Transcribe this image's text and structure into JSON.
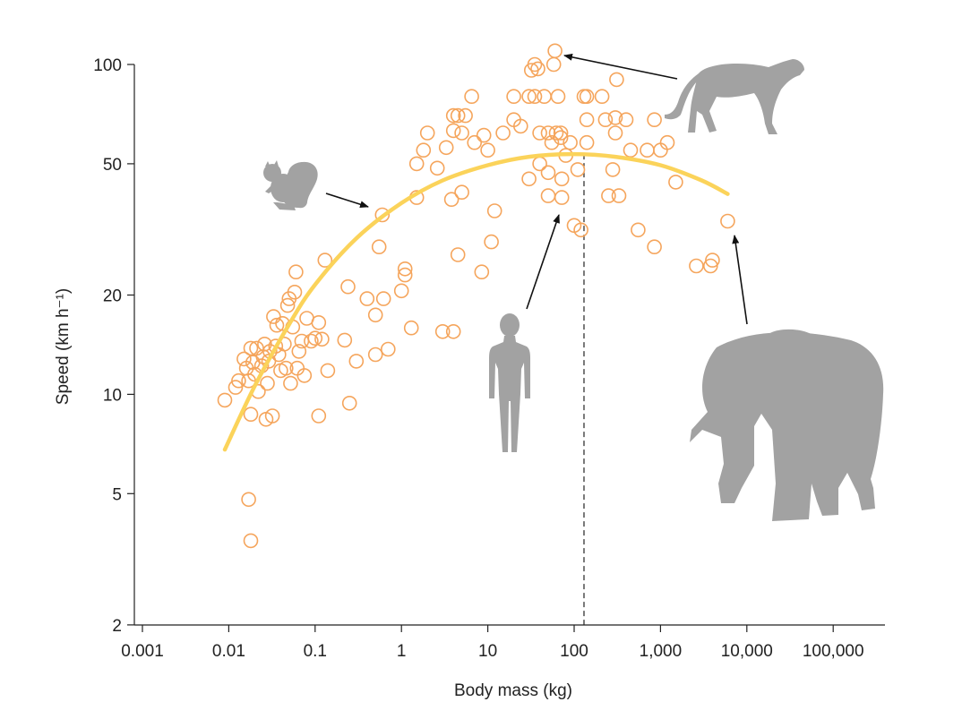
{
  "chart_data": {
    "type": "scatter",
    "xlabel": "Body mass (kg)",
    "ylabel": "Speed (km h⁻¹)",
    "x_scale": "log",
    "y_scale": "log",
    "xlim": [
      0.0009,
      400000
    ],
    "ylim": [
      2,
      115
    ],
    "x_ticks": [
      0.001,
      0.01,
      0.1,
      1,
      10,
      100,
      1000,
      10000,
      100000
    ],
    "x_tick_labels": [
      "0.001",
      "0.01",
      "0.1",
      "1",
      "10",
      "100",
      "1,000",
      "10,000",
      "100,000"
    ],
    "y_ticks": [
      2,
      5,
      10,
      20,
      50,
      100
    ],
    "y_tick_labels": [
      "2",
      "5",
      "10",
      "20",
      "50",
      "100"
    ],
    "points": [
      [
        0.009,
        9.6
      ],
      [
        0.012,
        10.5
      ],
      [
        0.013,
        11
      ],
      [
        0.015,
        12.8
      ],
      [
        0.016,
        12
      ],
      [
        0.017,
        11
      ],
      [
        0.018,
        8.7
      ],
      [
        0.018,
        13.8
      ],
      [
        0.019,
        12.5
      ],
      [
        0.02,
        11.5
      ],
      [
        0.021,
        13.8
      ],
      [
        0.022,
        10.2
      ],
      [
        0.024,
        12.2
      ],
      [
        0.025,
        13
      ],
      [
        0.026,
        14.2
      ],
      [
        0.027,
        8.4
      ],
      [
        0.028,
        10.8
      ],
      [
        0.029,
        12.6
      ],
      [
        0.03,
        13.5
      ],
      [
        0.032,
        8.6
      ],
      [
        0.033,
        17.2
      ],
      [
        0.035,
        14
      ],
      [
        0.036,
        16.2
      ],
      [
        0.038,
        13.2
      ],
      [
        0.04,
        11.8
      ],
      [
        0.042,
        16.4
      ],
      [
        0.044,
        14.2
      ],
      [
        0.046,
        12
      ],
      [
        0.048,
        18.6
      ],
      [
        0.05,
        19.5
      ],
      [
        0.052,
        10.8
      ],
      [
        0.055,
        16
      ],
      [
        0.058,
        20.4
      ],
      [
        0.06,
        23.5
      ],
      [
        0.062,
        12
      ],
      [
        0.065,
        13.5
      ],
      [
        0.07,
        14.5
      ],
      [
        0.075,
        11.4
      ],
      [
        0.08,
        17
      ],
      [
        0.09,
        14.5
      ],
      [
        0.1,
        14.8
      ],
      [
        0.11,
        16.5
      ],
      [
        0.11,
        8.6
      ],
      [
        0.12,
        14.7
      ],
      [
        0.13,
        25.5
      ],
      [
        0.14,
        11.8
      ],
      [
        0.22,
        14.6
      ],
      [
        0.24,
        21.2
      ],
      [
        0.25,
        9.4
      ],
      [
        0.3,
        12.6
      ],
      [
        0.4,
        19.5
      ],
      [
        0.5,
        13.2
      ],
      [
        0.5,
        17.4
      ],
      [
        0.55,
        28
      ],
      [
        0.6,
        35
      ],
      [
        0.62,
        19.5
      ],
      [
        0.7,
        13.7
      ],
      [
        1.0,
        20.6
      ],
      [
        1.1,
        23
      ],
      [
        1.1,
        24
      ],
      [
        1.3,
        15.9
      ],
      [
        1.5,
        39.5
      ],
      [
        1.5,
        50
      ],
      [
        1.8,
        55
      ],
      [
        2.0,
        62
      ],
      [
        2.6,
        48.5
      ],
      [
        3.0,
        15.5
      ],
      [
        3.3,
        56
      ],
      [
        3.8,
        39
      ],
      [
        4.0,
        15.5
      ],
      [
        4.0,
        70
      ],
      [
        4.0,
        63
      ],
      [
        4.5,
        26.5
      ],
      [
        4.5,
        70
      ],
      [
        5.0,
        41
      ],
      [
        5.0,
        62
      ],
      [
        5.5,
        70
      ],
      [
        6.5,
        80
      ],
      [
        7.0,
        58
      ],
      [
        8.5,
        23.5
      ],
      [
        9.0,
        61
      ],
      [
        10,
        55
      ],
      [
        11,
        29
      ],
      [
        12,
        36
      ],
      [
        15,
        62
      ],
      [
        20,
        68
      ],
      [
        20,
        80
      ],
      [
        24,
        65
      ],
      [
        30,
        45
      ],
      [
        30,
        80
      ],
      [
        32,
        96
      ],
      [
        35,
        80
      ],
      [
        35,
        100
      ],
      [
        38,
        97
      ],
      [
        40,
        50
      ],
      [
        40,
        62
      ],
      [
        45,
        80
      ],
      [
        50,
        62
      ],
      [
        50,
        40
      ],
      [
        50,
        47
      ],
      [
        55,
        58
      ],
      [
        58,
        100
      ],
      [
        60,
        110
      ],
      [
        62,
        62
      ],
      [
        65,
        80
      ],
      [
        70,
        60
      ],
      [
        70,
        62
      ],
      [
        72,
        45
      ],
      [
        72,
        39.5
      ],
      [
        80,
        53
      ],
      [
        90,
        58
      ],
      [
        100,
        32.5
      ],
      [
        110,
        48
      ],
      [
        120,
        31.5
      ],
      [
        130,
        80
      ],
      [
        140,
        58
      ],
      [
        140,
        80
      ],
      [
        140,
        68
      ],
      [
        210,
        80
      ],
      [
        230,
        68
      ],
      [
        250,
        40
      ],
      [
        280,
        48
      ],
      [
        300,
        69
      ],
      [
        300,
        62
      ],
      [
        310,
        90
      ],
      [
        330,
        40
      ],
      [
        400,
        68
      ],
      [
        450,
        55
      ],
      [
        550,
        31.5
      ],
      [
        700,
        55
      ],
      [
        850,
        28
      ],
      [
        850,
        68
      ],
      [
        1000,
        55
      ],
      [
        1200,
        58
      ],
      [
        1500,
        44
      ],
      [
        2600,
        24.5
      ],
      [
        3800,
        24.5
      ],
      [
        4000,
        25.5
      ],
      [
        6000,
        33.5
      ],
      [
        0.017,
        4.8
      ],
      [
        0.018,
        3.6
      ]
    ],
    "fit_curve": [
      [
        0.009,
        6.8
      ],
      [
        0.02,
        10.6
      ],
      [
        0.05,
        16.3
      ],
      [
        0.1,
        21.5
      ],
      [
        0.3,
        29.7
      ],
      [
        1,
        38
      ],
      [
        3,
        44.5
      ],
      [
        10,
        49.5
      ],
      [
        30,
        52.5
      ],
      [
        100,
        53.5
      ],
      [
        300,
        52.5
      ],
      [
        1000,
        49.5
      ],
      [
        3000,
        44.5
      ],
      [
        6000,
        40.5
      ]
    ],
    "vline_x": 130,
    "colors": {
      "points": "#f5a55c",
      "curve": "#fbd35a",
      "silhouettes": "#a2a2a2",
      "axes": "#222222"
    },
    "annotations": [
      {
        "name": "squirrel-icon",
        "points_to": [
          0.6,
          35
        ]
      },
      {
        "name": "human-icon",
        "points_to": [
          70,
          40
        ]
      },
      {
        "name": "cheetah-icon",
        "points_to": [
          60,
          110
        ]
      },
      {
        "name": "elephant-icon",
        "points_to": [
          6000,
          33.5
        ]
      }
    ]
  }
}
